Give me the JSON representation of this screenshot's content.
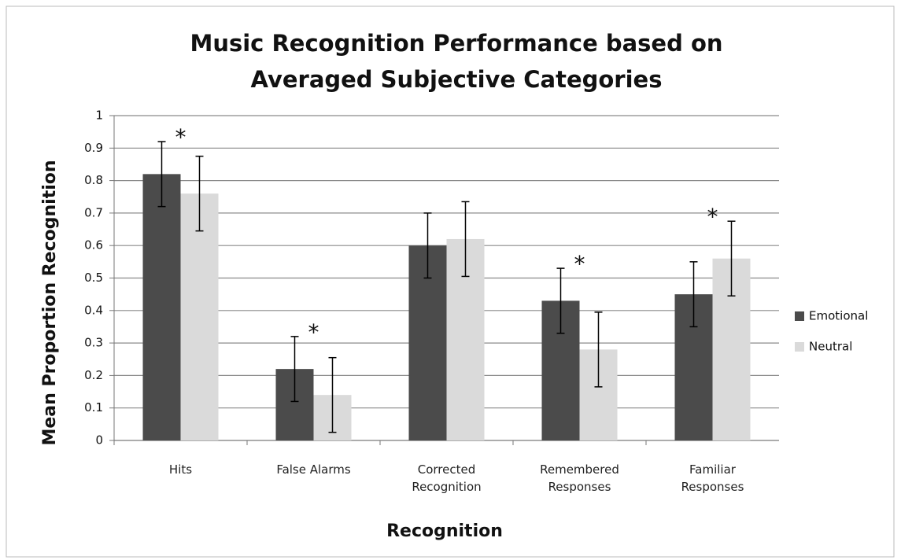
{
  "chart_data": {
    "type": "bar",
    "title": [
      "Music Recognition Performance based on",
      "Averaged Subjective Categories"
    ],
    "x_label": "Recognition",
    "y_label": "Mean Proportion Recognition",
    "categories": [
      "Hits",
      "False Alarms",
      "Corrected Recognition",
      "Remembered Responses",
      "Familiar Responses"
    ],
    "series": [
      {
        "name": "Emotional",
        "color": "#4b4b4b",
        "values": [
          0.82,
          0.22,
          0.6,
          0.43,
          0.45
        ],
        "errors": [
          0.1,
          0.1,
          0.1,
          0.1,
          0.1
        ]
      },
      {
        "name": "Neutral",
        "color": "#dadada",
        "values": [
          0.76,
          0.14,
          0.62,
          0.28,
          0.56
        ],
        "errors": [
          0.115,
          0.115,
          0.115,
          0.115,
          0.115
        ]
      }
    ],
    "significance": [
      "*",
      "*",
      null,
      "*",
      "*"
    ],
    "ylim": [
      0,
      1
    ],
    "yticks": [
      0,
      0.1,
      0.2,
      0.3,
      0.4,
      0.5,
      0.6,
      0.7,
      0.8,
      0.9,
      1
    ],
    "grid": true,
    "legend": "right"
  }
}
